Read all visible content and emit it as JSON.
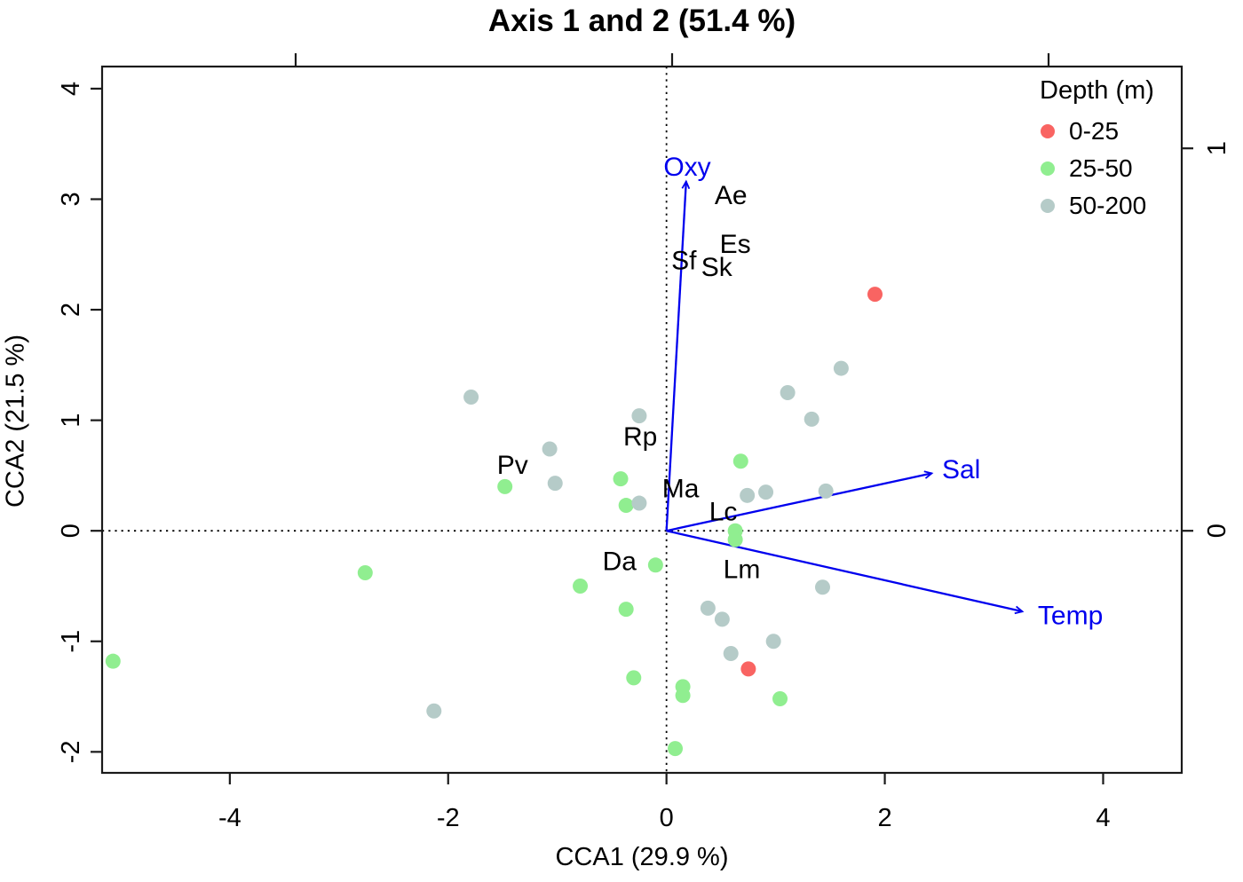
{
  "title": "Axis 1 and 2 (51.4 %)",
  "legend": {
    "title": "Depth (m)",
    "items": [
      {
        "label": "0-25",
        "color": "#F96462"
      },
      {
        "label": "25-50",
        "color": "#90EE90"
      },
      {
        "label": "50-200",
        "color": "#B5CBC8"
      }
    ]
  },
  "chart_data": {
    "type": "scatter",
    "title": "Axis 1 and 2 (51.4 %)",
    "xlabel": "CCA1 (29.9 %)",
    "ylabel": "CCA2 (21.5 %)",
    "xlim": [
      -5.17,
      4.72
    ],
    "ylim": [
      -2.19,
      4.2
    ],
    "x_ticks": [
      -4,
      -2,
      0,
      2,
      4
    ],
    "y_ticks": [
      -2,
      -1,
      0,
      1,
      2,
      3,
      4
    ],
    "top_secondary_ticks": [
      -1,
      0,
      1
    ],
    "right_secondary_ticks": [
      0,
      1
    ],
    "grid": "dotted-zero-lines",
    "legend_position": "top-right",
    "point_color_red": "#F96462",
    "point_color_green": "#90EE90",
    "point_color_gray": "#B5CBC8",
    "arrow_color": "#0000EE",
    "series": [
      {
        "name": "0-25",
        "color": "#F96462",
        "points": [
          [
            1.91,
            2.14
          ],
          [
            0.75,
            -1.25
          ]
        ]
      },
      {
        "name": "25-50",
        "color": "#90EE90",
        "points": [
          [
            -5.07,
            -1.18
          ],
          [
            -2.76,
            -0.38
          ],
          [
            -1.48,
            0.4
          ],
          [
            -0.79,
            -0.5
          ],
          [
            -0.42,
            0.47
          ],
          [
            -0.37,
            0.23
          ],
          [
            -0.37,
            -0.71
          ],
          [
            -0.3,
            -1.33
          ],
          [
            -0.1,
            -0.31
          ],
          [
            0.08,
            -1.97
          ],
          [
            0.15,
            -1.41
          ],
          [
            0.15,
            -1.49
          ],
          [
            0.63,
            0.0
          ],
          [
            0.63,
            -0.08
          ],
          [
            0.68,
            0.63
          ],
          [
            1.04,
            -1.52
          ]
        ]
      },
      {
        "name": "50-200",
        "color": "#B5CBC8",
        "points": [
          [
            -2.13,
            -1.63
          ],
          [
            -1.79,
            1.21
          ],
          [
            -1.07,
            0.74
          ],
          [
            -1.02,
            0.43
          ],
          [
            -0.25,
            1.04
          ],
          [
            -0.25,
            0.25
          ],
          [
            0.38,
            -0.7
          ],
          [
            0.51,
            -0.8
          ],
          [
            0.59,
            -1.11
          ],
          [
            0.74,
            0.32
          ],
          [
            0.91,
            0.35
          ],
          [
            0.98,
            -1.0
          ],
          [
            1.11,
            1.25
          ],
          [
            1.33,
            1.01
          ],
          [
            1.43,
            -0.51
          ],
          [
            1.46,
            0.36
          ],
          [
            1.6,
            1.47
          ]
        ]
      }
    ],
    "species_labels": [
      {
        "text": "Ae",
        "x": 0.59,
        "y": 3.03
      },
      {
        "text": "Es",
        "x": 0.63,
        "y": 2.59
      },
      {
        "text": "Sf",
        "x": 0.16,
        "y": 2.44
      },
      {
        "text": "Sk",
        "x": 0.46,
        "y": 2.38
      },
      {
        "text": "Rp",
        "x": -0.24,
        "y": 0.85
      },
      {
        "text": "Pv",
        "x": -1.41,
        "y": 0.59
      },
      {
        "text": "Ma",
        "x": 0.13,
        "y": 0.38
      },
      {
        "text": "Lc",
        "x": 0.52,
        "y": 0.17
      },
      {
        "text": "Da",
        "x": -0.43,
        "y": -0.28
      },
      {
        "text": "Lm",
        "x": 0.69,
        "y": -0.35
      }
    ],
    "arrows": [
      {
        "name": "Oxy",
        "tip": [
          0.18,
          3.16
        ],
        "label_pos": [
          0.19,
          3.29
        ]
      },
      {
        "name": "Sal",
        "tip": [
          2.43,
          0.52
        ],
        "label_pos": [
          2.7,
          0.55
        ]
      },
      {
        "name": "Temp",
        "tip": [
          3.26,
          -0.73
        ],
        "label_pos": [
          3.7,
          -0.77
        ]
      }
    ]
  }
}
